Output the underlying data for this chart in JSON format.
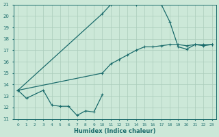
{
  "xlabel": "Humidex (Indice chaleur)",
  "xlim": [
    -0.5,
    23.5
  ],
  "ylim": [
    11,
    21
  ],
  "xticks": [
    0,
    1,
    2,
    3,
    4,
    5,
    6,
    7,
    8,
    9,
    10,
    11,
    12,
    13,
    14,
    15,
    16,
    17,
    18,
    19,
    20,
    21,
    22,
    23
  ],
  "yticks": [
    11,
    12,
    13,
    14,
    15,
    16,
    17,
    18,
    19,
    20,
    21
  ],
  "bg_color": "#cce8d8",
  "grid_color": "#aaccbb",
  "line_color": "#1a6b6b",
  "line_upper": {
    "x": [
      0,
      10,
      11,
      12,
      13,
      14,
      15,
      16,
      17,
      18,
      19,
      20,
      21,
      22,
      23
    ],
    "y": [
      13.5,
      20.2,
      21.0,
      21.2,
      21.3,
      21.0,
      21.2,
      21.1,
      21.0,
      19.5,
      17.3,
      17.1,
      17.5,
      17.4,
      17.5
    ]
  },
  "line_middle": {
    "x": [
      0,
      10,
      11,
      12,
      13,
      14,
      15,
      16,
      17,
      18,
      19,
      20,
      21,
      22,
      23
    ],
    "y": [
      13.5,
      15.0,
      15.8,
      16.2,
      16.6,
      17.0,
      17.3,
      17.3,
      17.4,
      17.5,
      17.5,
      17.4,
      17.5,
      17.5,
      17.5
    ]
  },
  "line_lower": {
    "x": [
      0,
      1,
      3,
      4,
      5,
      6,
      7,
      8,
      9,
      10
    ],
    "y": [
      13.5,
      12.8,
      13.5,
      12.2,
      12.1,
      12.1,
      11.3,
      11.7,
      11.6,
      13.1
    ]
  }
}
